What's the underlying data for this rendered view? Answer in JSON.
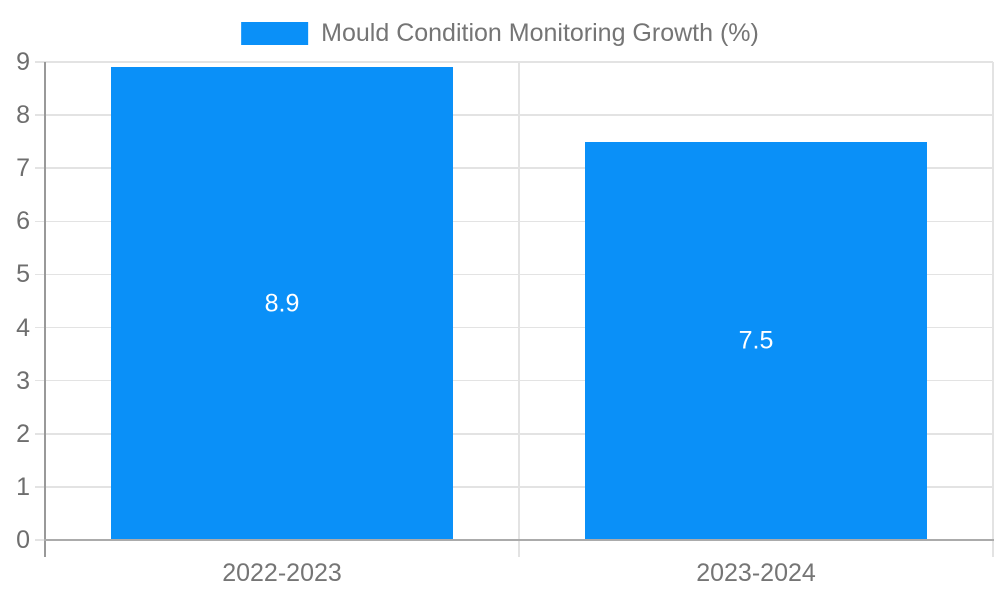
{
  "chart_data": {
    "type": "bar",
    "title": "",
    "legend": {
      "position": "top",
      "label": "Mould Condition Monitoring Growth (%)"
    },
    "categories": [
      "2022-2023",
      "2023-2024"
    ],
    "series": [
      {
        "name": "Mould Condition Monitoring Growth (%)",
        "color": "#0a90f8",
        "values": [
          8.9,
          7.5
        ]
      }
    ],
    "data_labels": [
      "8.9",
      "7.5"
    ],
    "xlabel": "",
    "ylabel": "",
    "ylim": [
      0,
      9
    ],
    "yticks": [
      0,
      1,
      2,
      3,
      4,
      5,
      6,
      7,
      8,
      9
    ],
    "grid": true,
    "bar_width_ratio": 0.72
  },
  "colors": {
    "background": "#ffffff",
    "bar": "#0a90f8",
    "grid": "#e3e3e3",
    "y_axis_line": "#999999",
    "x_axis_line": "#ababab",
    "tick_text": "#6e6e6e",
    "category_text": "#757575",
    "legend_text": "#757575",
    "data_label": "#ffffff"
  }
}
